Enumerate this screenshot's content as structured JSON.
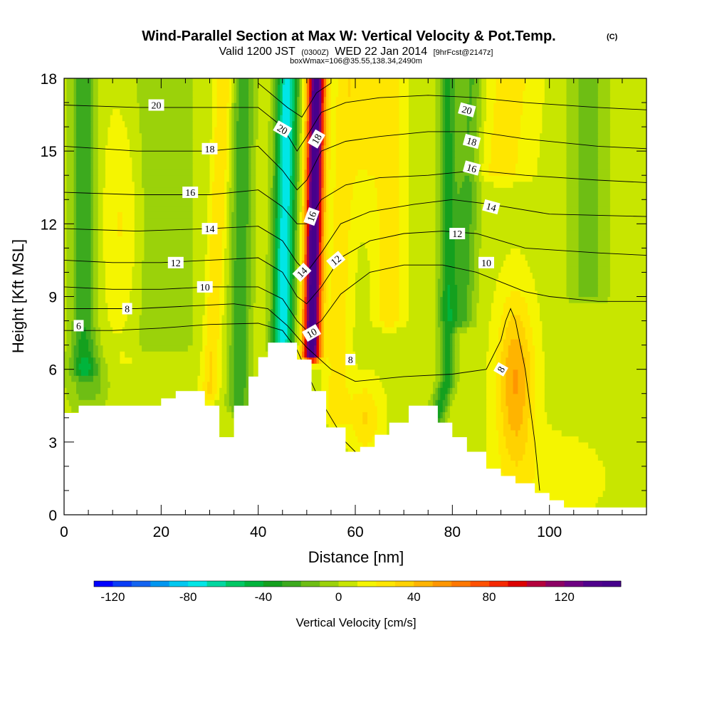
{
  "chart_data": {
    "type": "heatmap",
    "title": "Wind-Parallel Section at Max W: Vertical Velocity & Pot.Temp.",
    "title_mark": "(C)",
    "subtitle_prefix": "Valid 1200 JST",
    "subtitle_utc": "(0300Z)",
    "subtitle_date": "WED 22 Jan 2014",
    "subtitle_fcst": "[9hrFcst@2147z]",
    "subtitle2": "boxWmax=106@35.55,138.34,2490m",
    "xlabel": "Distance [nm]",
    "ylabel": "Height [Kft MSL]",
    "xlim": [
      0,
      120
    ],
    "ylim": [
      0,
      18
    ],
    "xticks": [
      "0",
      "20",
      "40",
      "60",
      "80",
      "100"
    ],
    "yticks": [
      "0",
      "3",
      "6",
      "9",
      "12",
      "15",
      "18"
    ],
    "colorbar": {
      "label": "Vertical Velocity [cm/s]",
      "tick_labels": [
        "-120",
        "-80",
        "-40",
        "0",
        "40",
        "80",
        "120"
      ],
      "range": [
        -130,
        150
      ],
      "step": 10
    },
    "terrain_height_kft": [
      [
        0,
        4.2
      ],
      [
        3,
        4.2
      ],
      [
        3,
        4.5
      ],
      [
        20,
        4.5
      ],
      [
        20,
        4.8
      ],
      [
        23,
        4.8
      ],
      [
        23,
        5.1
      ],
      [
        29,
        5.1
      ],
      [
        29,
        4.5
      ],
      [
        32,
        4.5
      ],
      [
        32,
        3.2
      ],
      [
        35,
        3.2
      ],
      [
        35,
        4.5
      ],
      [
        38,
        4.5
      ],
      [
        38,
        5.7
      ],
      [
        40,
        5.7
      ],
      [
        40,
        6.5
      ],
      [
        42,
        6.5
      ],
      [
        42,
        7.1
      ],
      [
        48,
        7.1
      ],
      [
        48,
        6.4
      ],
      [
        51,
        6.4
      ],
      [
        51,
        5.1
      ],
      [
        54,
        5.1
      ],
      [
        54,
        3.6
      ],
      [
        58,
        3.6
      ],
      [
        58,
        2.6
      ],
      [
        61,
        2.6
      ],
      [
        61,
        2.8
      ],
      [
        64,
        2.8
      ],
      [
        64,
        3.3
      ],
      [
        67,
        3.3
      ],
      [
        67,
        3.8
      ],
      [
        71,
        3.8
      ],
      [
        71,
        4.5
      ],
      [
        77,
        4.5
      ],
      [
        77,
        3.8
      ],
      [
        80,
        3.8
      ],
      [
        80,
        3.2
      ],
      [
        83,
        3.2
      ],
      [
        83,
        2.6
      ],
      [
        87,
        2.6
      ],
      [
        87,
        1.9
      ],
      [
        90,
        1.9
      ],
      [
        90,
        1.6
      ],
      [
        93,
        1.6
      ],
      [
        93,
        1.3
      ],
      [
        97,
        1.3
      ],
      [
        97,
        0.9
      ],
      [
        100,
        0.9
      ],
      [
        100,
        0.6
      ],
      [
        103,
        0.6
      ],
      [
        103,
        0.3
      ],
      [
        120,
        0.3
      ]
    ],
    "w_features": [
      {
        "type": "ridge",
        "x_bottom": 51,
        "y_bottom": 6.6,
        "x_top": 52,
        "y_top": 18,
        "width": 1.8,
        "peak": 145
      },
      {
        "type": "ridge",
        "x_bottom": 45,
        "y_bottom": 7.0,
        "x_top": 46,
        "y_top": 18,
        "width": 2.2,
        "peak": -85
      },
      {
        "type": "ridge",
        "x_bottom": 20,
        "y_bottom": 7.0,
        "x_top": 20,
        "y_top": 18,
        "width": 7,
        "peak": -15
      },
      {
        "type": "ridge",
        "x_bottom": 30,
        "y_bottom": 5.0,
        "x_top": 33,
        "y_top": 18,
        "width": 1.8,
        "peak": 25
      },
      {
        "type": "ridge",
        "x_bottom": 36,
        "y_bottom": 4.5,
        "x_top": 37,
        "y_top": 18,
        "width": 2.2,
        "peak": -35
      },
      {
        "type": "ridge",
        "x_bottom": 4,
        "y_bottom": 6.0,
        "x_top": 4,
        "y_top": 18,
        "width": 2.5,
        "peak": -35
      },
      {
        "type": "ridge",
        "x_bottom": 56,
        "y_bottom": 4.0,
        "x_top": 58,
        "y_top": 18,
        "width": 2.5,
        "peak": 20
      },
      {
        "type": "ridge",
        "x_bottom": 67,
        "y_bottom": 8.0,
        "x_top": 67,
        "y_top": 17,
        "width": 3,
        "peak": 20
      },
      {
        "type": "ridge",
        "x_bottom": 90,
        "y_bottom": 14.0,
        "x_top": 92,
        "y_top": 18,
        "width": 6,
        "peak": 18
      },
      {
        "type": "ridge",
        "x_bottom": 82,
        "y_bottom": 8.0,
        "x_top": 84,
        "y_top": 18,
        "width": 2.5,
        "peak": -30
      },
      {
        "type": "ridge",
        "x_bottom": 76,
        "y_bottom": 3.5,
        "x_top": 79,
        "y_top": 5.6,
        "width": 1.8,
        "peak": -40
      },
      {
        "type": "ridge",
        "x_bottom": 108,
        "y_bottom": 9.0,
        "x_top": 108,
        "y_top": 18,
        "width": 4,
        "peak": -20
      },
      {
        "type": "blob",
        "x": 93,
        "y": 5.5,
        "rx": 3.8,
        "ry": 3.5,
        "peak": 45
      },
      {
        "type": "blob",
        "x": 62,
        "y": 4.0,
        "rx": 3.5,
        "ry": 1.5,
        "peak": 25
      },
      {
        "type": "blob",
        "x": 62,
        "y": 17,
        "rx": 3,
        "ry": 4,
        "peak": 20
      },
      {
        "type": "blob",
        "x": 12,
        "y": 12,
        "rx": 4,
        "ry": 5,
        "peak": 18
      },
      {
        "type": "blob",
        "x": 5,
        "y": 5.5,
        "rx": 4,
        "ry": 1.3,
        "peak": -25
      },
      {
        "type": "blob",
        "x": 100,
        "y": 1.5,
        "rx": 12,
        "ry": 2,
        "peak": 10
      }
    ],
    "potential_temperature_contours": [
      {
        "label": "6",
        "label_x": 3,
        "label_y": 7.8,
        "points": [
          [
            0,
            7.6
          ],
          [
            10,
            7.6
          ],
          [
            20,
            7.7
          ],
          [
            30,
            7.85
          ],
          [
            40,
            7.9
          ],
          [
            45,
            7.6
          ],
          [
            48,
            6.8
          ],
          [
            50,
            5.9
          ],
          [
            52,
            5.0
          ],
          [
            55,
            4.0
          ],
          [
            58,
            3.0
          ],
          [
            60,
            2.6
          ]
        ]
      },
      {
        "label": "8",
        "label_x": 13,
        "label_y": 8.5,
        "points": [
          [
            0,
            8.5
          ],
          [
            15,
            8.5
          ],
          [
            25,
            8.6
          ],
          [
            35,
            8.7
          ],
          [
            42,
            8.5
          ],
          [
            46,
            7.8
          ],
          [
            50,
            6.9
          ],
          [
            55,
            6.0
          ],
          [
            60,
            5.5
          ],
          [
            70,
            5.7
          ],
          [
            80,
            5.8
          ],
          [
            87,
            6.0
          ],
          [
            90,
            7.2
          ],
          [
            91,
            8.0
          ],
          [
            92,
            8.5
          ],
          [
            93,
            8.0
          ],
          [
            95,
            6.0
          ],
          [
            97,
            3.0
          ],
          [
            98,
            1.0
          ]
        ]
      },
      {
        "label": "10",
        "label_x": 29,
        "label_y": 9.4,
        "points": [
          [
            0,
            9.4
          ],
          [
            10,
            9.3
          ],
          [
            20,
            9.3
          ],
          [
            30,
            9.4
          ],
          [
            40,
            9.4
          ],
          [
            45,
            8.9
          ],
          [
            48,
            8.0
          ],
          [
            50,
            7.6
          ],
          [
            53,
            8.0
          ],
          [
            57,
            9.1
          ],
          [
            63,
            10.0
          ],
          [
            70,
            10.3
          ],
          [
            78,
            10.3
          ],
          [
            85,
            10.0
          ],
          [
            90,
            9.6
          ],
          [
            95,
            9.2
          ],
          [
            100,
            9.0
          ],
          [
            110,
            8.8
          ],
          [
            120,
            8.8
          ]
        ]
      },
      {
        "label": "12",
        "label_x": 23,
        "label_y": 10.4,
        "points": [
          [
            0,
            10.5
          ],
          [
            10,
            10.4
          ],
          [
            20,
            10.4
          ],
          [
            30,
            10.5
          ],
          [
            40,
            10.6
          ],
          [
            45,
            10.0
          ],
          [
            48,
            9.0
          ],
          [
            50,
            8.7
          ],
          [
            53,
            9.4
          ],
          [
            57,
            10.6
          ],
          [
            63,
            11.3
          ],
          [
            70,
            11.6
          ],
          [
            78,
            11.7
          ],
          [
            85,
            11.6
          ],
          [
            95,
            11.0
          ],
          [
            110,
            10.8
          ],
          [
            120,
            10.7
          ]
        ]
      },
      {
        "label": "14",
        "label_x": 30,
        "label_y": 11.8,
        "points": [
          [
            0,
            11.8
          ],
          [
            15,
            11.7
          ],
          [
            30,
            11.8
          ],
          [
            40,
            11.9
          ],
          [
            45,
            11.3
          ],
          [
            48,
            10.4
          ],
          [
            50,
            10.0
          ],
          [
            53,
            10.8
          ],
          [
            57,
            12.0
          ],
          [
            63,
            12.5
          ],
          [
            72,
            12.8
          ],
          [
            80,
            13.0
          ],
          [
            88,
            12.8
          ],
          [
            100,
            12.4
          ],
          [
            120,
            12.3
          ]
        ]
      },
      {
        "label": "16",
        "label_x": 26,
        "label_y": 13.3,
        "points": [
          [
            0,
            13.3
          ],
          [
            15,
            13.2
          ],
          [
            30,
            13.2
          ],
          [
            40,
            13.4
          ],
          [
            45,
            12.7
          ],
          [
            48,
            12.0
          ],
          [
            50,
            12.0
          ],
          [
            53,
            13.0
          ],
          [
            58,
            13.6
          ],
          [
            65,
            13.9
          ],
          [
            75,
            14.0
          ],
          [
            85,
            14.2
          ],
          [
            95,
            14.0
          ],
          [
            110,
            13.8
          ],
          [
            120,
            13.7
          ]
        ]
      },
      {
        "label": "18",
        "label_x": 30,
        "label_y": 15.1,
        "points": [
          [
            0,
            15.2
          ],
          [
            15,
            15.0
          ],
          [
            30,
            15.0
          ],
          [
            40,
            15.2
          ],
          [
            45,
            14.2
          ],
          [
            48,
            13.4
          ],
          [
            50,
            13.8
          ],
          [
            53,
            15.0
          ],
          [
            58,
            15.4
          ],
          [
            65,
            15.6
          ],
          [
            75,
            15.8
          ],
          [
            85,
            15.8
          ],
          [
            95,
            15.5
          ],
          [
            110,
            15.2
          ],
          [
            120,
            15.1
          ]
        ]
      },
      {
        "label": "20",
        "label_x": 19,
        "label_y": 16.9,
        "points": [
          [
            0,
            16.9
          ],
          [
            15,
            16.8
          ],
          [
            30,
            16.8
          ],
          [
            40,
            16.8
          ],
          [
            45,
            16.0
          ],
          [
            48,
            15.0
          ],
          [
            50,
            15.6
          ],
          [
            53,
            16.6
          ],
          [
            58,
            17.0
          ],
          [
            65,
            17.2
          ],
          [
            75,
            17.3
          ],
          [
            85,
            17.2
          ],
          [
            95,
            17.0
          ],
          [
            110,
            16.8
          ],
          [
            120,
            16.7
          ]
        ]
      },
      {
        "label": "",
        "label_x": 0,
        "label_y": 0,
        "points": [
          [
            40,
            17.8
          ],
          [
            46,
            16.8
          ],
          [
            49,
            16.4
          ],
          [
            52,
            17.4
          ],
          [
            55,
            17.8
          ]
        ]
      }
    ],
    "extra_contour_labels": [
      {
        "label": "20",
        "x": 45,
        "y": 15.9,
        "angle": 30
      },
      {
        "label": "18",
        "x": 52,
        "y": 15.5,
        "angle": -60
      },
      {
        "label": "16",
        "x": 51,
        "y": 12.3,
        "angle": -70
      },
      {
        "label": "14",
        "x": 49,
        "y": 10.0,
        "angle": -45
      },
      {
        "label": "12",
        "x": 56,
        "y": 10.5,
        "angle": -40
      },
      {
        "label": "10",
        "x": 51,
        "y": 7.5,
        "angle": -30
      },
      {
        "label": "8",
        "x": 59,
        "y": 6.4,
        "angle": 0
      },
      {
        "label": "20",
        "x": 83,
        "y": 16.7,
        "angle": 15
      },
      {
        "label": "18",
        "x": 84,
        "y": 15.4,
        "angle": 15
      },
      {
        "label": "16",
        "x": 84,
        "y": 14.3,
        "angle": 15
      },
      {
        "label": "14",
        "x": 88,
        "y": 12.7,
        "angle": 15
      },
      {
        "label": "12",
        "x": 81,
        "y": 11.6,
        "angle": 0
      },
      {
        "label": "10",
        "x": 87,
        "y": 10.4,
        "angle": 0
      },
      {
        "label": "8",
        "x": 90,
        "y": 6.0,
        "angle": -60
      }
    ]
  }
}
